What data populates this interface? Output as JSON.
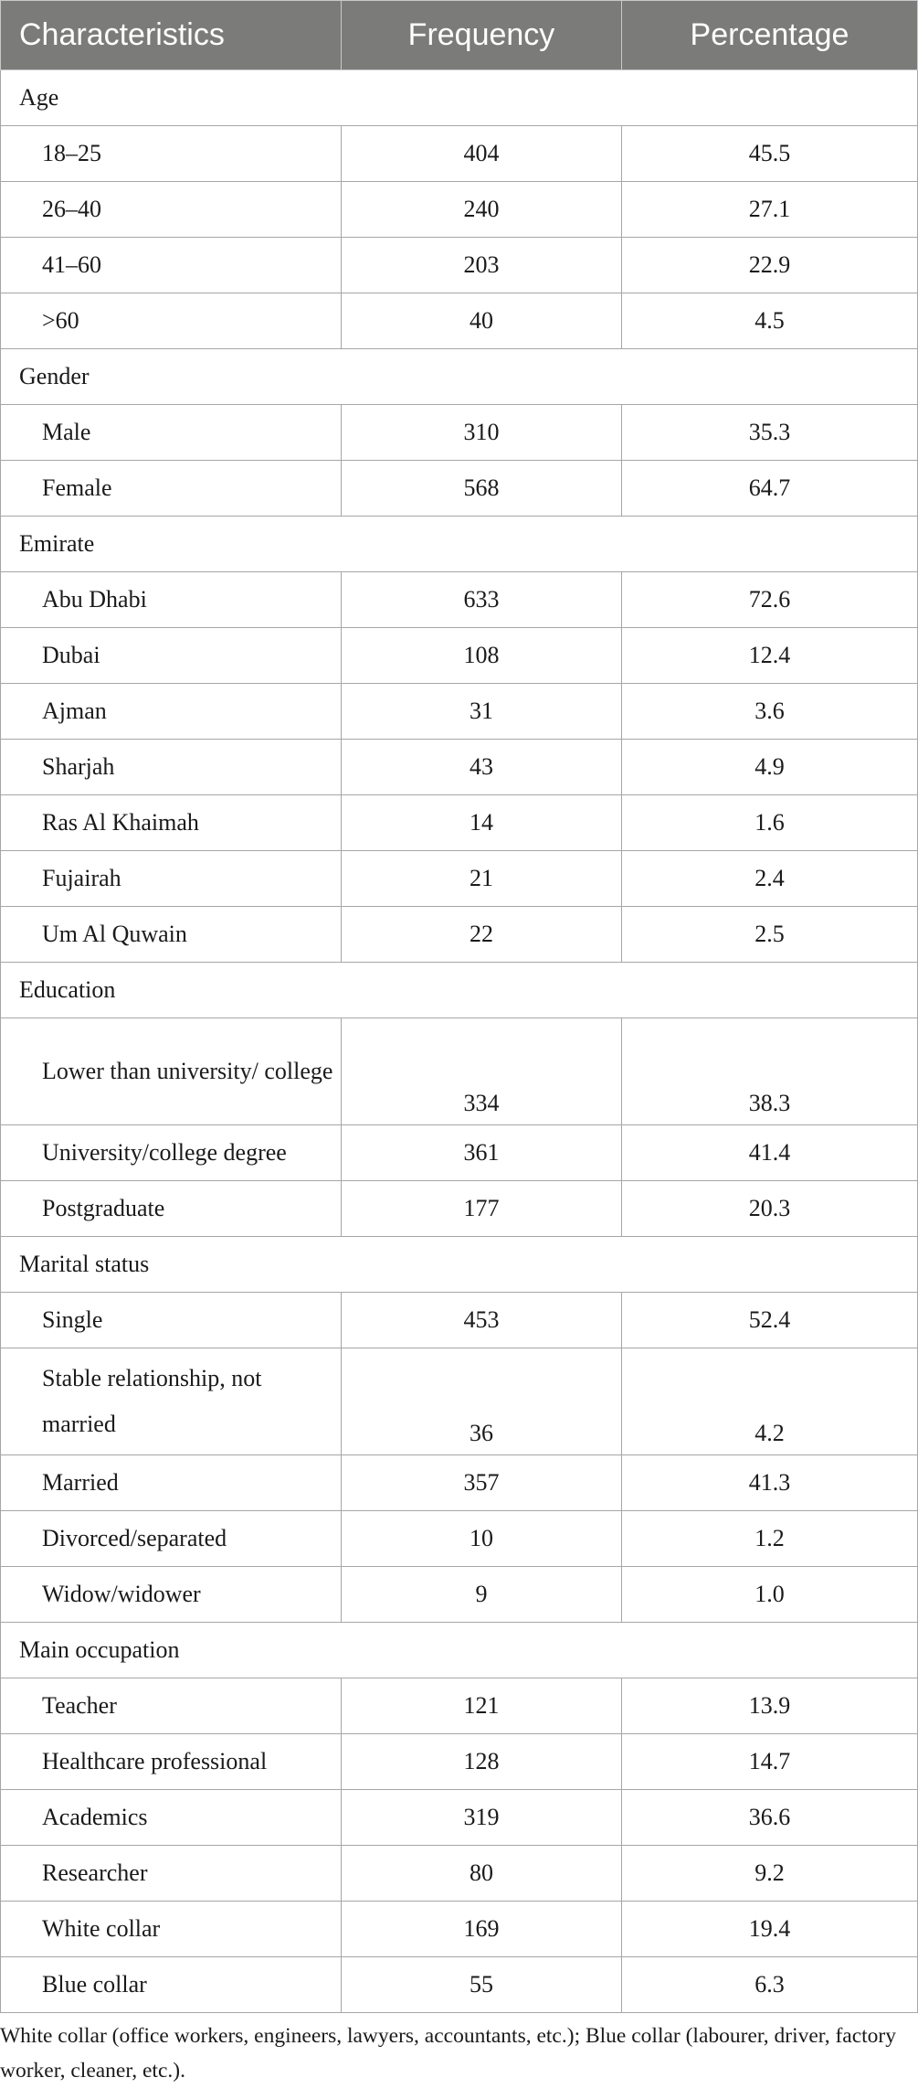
{
  "table": {
    "headers": [
      "Characteristics",
      "Frequency",
      "Percentage"
    ],
    "rows": [
      {
        "type": "group",
        "label": "Age"
      },
      {
        "type": "item",
        "label": "18–25",
        "frequency": "404",
        "percentage": "45.5"
      },
      {
        "type": "item",
        "label": "26–40",
        "frequency": "240",
        "percentage": "27.1"
      },
      {
        "type": "item",
        "label": "41–60",
        "frequency": "203",
        "percentage": "22.9"
      },
      {
        "type": "item",
        "label": ">60",
        "frequency": "40",
        "percentage": "4.5"
      },
      {
        "type": "group",
        "label": "Gender"
      },
      {
        "type": "item",
        "label": "Male",
        "frequency": "310",
        "percentage": "35.3"
      },
      {
        "type": "item",
        "label": "Female",
        "frequency": "568",
        "percentage": "64.7"
      },
      {
        "type": "group",
        "label": "Emirate"
      },
      {
        "type": "item",
        "label": "Abu Dhabi",
        "frequency": "633",
        "percentage": "72.6"
      },
      {
        "type": "item",
        "label": "Dubai",
        "frequency": "108",
        "percentage": "12.4"
      },
      {
        "type": "item",
        "label": "Ajman",
        "frequency": "31",
        "percentage": "3.6"
      },
      {
        "type": "item",
        "label": "Sharjah",
        "frequency": "43",
        "percentage": "4.9"
      },
      {
        "type": "item",
        "label": "Ras Al Khaimah",
        "frequency": "14",
        "percentage": "1.6"
      },
      {
        "type": "item",
        "label": "Fujairah",
        "frequency": "21",
        "percentage": "2.4"
      },
      {
        "type": "item",
        "label": "Um Al Quwain",
        "frequency": "22",
        "percentage": "2.5"
      },
      {
        "type": "group",
        "label": "Education"
      },
      {
        "type": "item",
        "tall": true,
        "label": "Lower than university/ college",
        "frequency": "334",
        "percentage": "38.3"
      },
      {
        "type": "item",
        "label": "University/college degree",
        "frequency": "361",
        "percentage": "41.4"
      },
      {
        "type": "item",
        "label": "Postgraduate",
        "frequency": "177",
        "percentage": "20.3"
      },
      {
        "type": "group",
        "label": "Marital status"
      },
      {
        "type": "item",
        "label": "Single",
        "frequency": "453",
        "percentage": "52.4"
      },
      {
        "type": "item",
        "tall": true,
        "label": "Stable relationship, not married",
        "frequency": "36",
        "percentage": "4.2"
      },
      {
        "type": "item",
        "label": "Married",
        "frequency": "357",
        "percentage": "41.3"
      },
      {
        "type": "item",
        "label": "Divorced/separated",
        "frequency": "10",
        "percentage": "1.2"
      },
      {
        "type": "item",
        "label": "Widow/widower",
        "frequency": "9",
        "percentage": "1.0"
      },
      {
        "type": "group",
        "label": "Main occupation"
      },
      {
        "type": "item",
        "label": "Teacher",
        "frequency": "121",
        "percentage": "13.9"
      },
      {
        "type": "item",
        "label": "Healthcare professional",
        "frequency": "128",
        "percentage": "14.7"
      },
      {
        "type": "item",
        "label": "Academics",
        "frequency": "319",
        "percentage": "36.6"
      },
      {
        "type": "item",
        "label": "Researcher",
        "frequency": "80",
        "percentage": "9.2"
      },
      {
        "type": "item",
        "label": "White collar",
        "frequency": "169",
        "percentage": "19.4"
      },
      {
        "type": "item",
        "label": "Blue collar",
        "frequency": "55",
        "percentage": "6.3"
      }
    ]
  },
  "footnote": "White collar (office workers, engineers, lawyers, accountants, etc.); Blue collar (labourer, driver, factory worker, cleaner, etc.).",
  "colors": {
    "header_background": "#7b7b7a",
    "header_text": "#ffffff",
    "grid_lines": "#a6a6a6",
    "body_text": "#1a1a1a"
  }
}
